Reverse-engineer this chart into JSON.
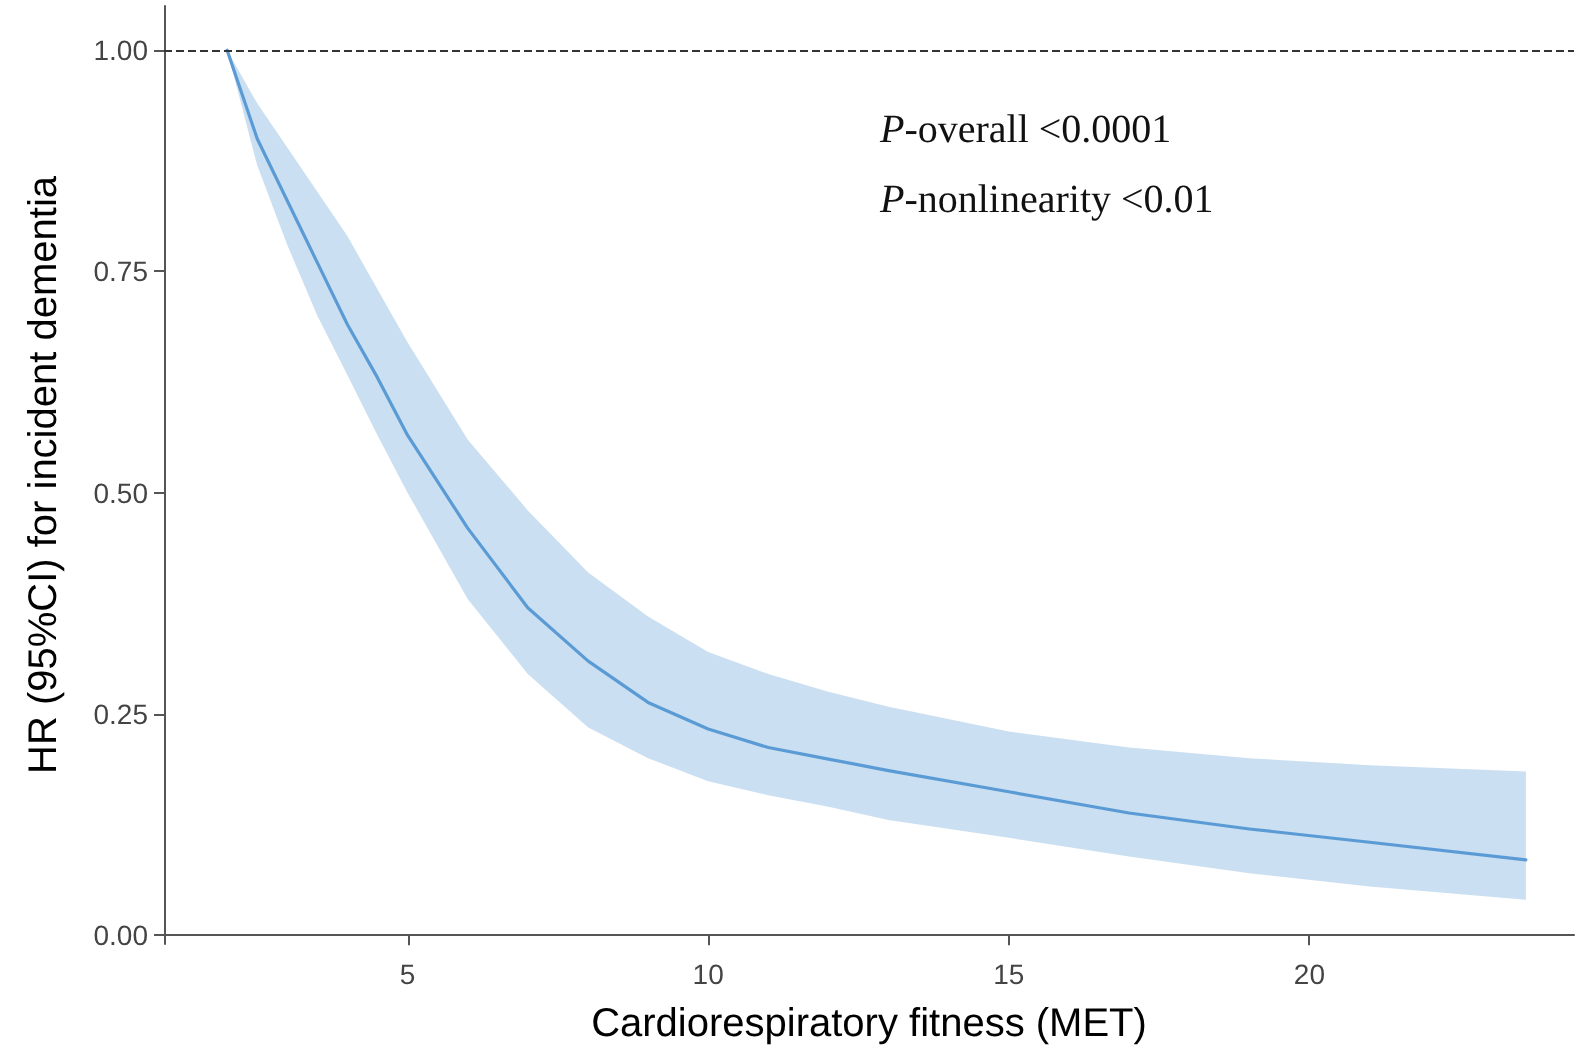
{
  "chart_data": {
    "type": "line",
    "xlabel": "Cardiorespiratory fitness (MET)",
    "ylabel": "HR (95%CI) for incident dementia",
    "x": [
      2,
      2.5,
      3,
      3.5,
      4,
      4.5,
      5,
      6,
      7,
      8,
      9,
      10,
      11,
      12,
      13,
      15,
      17,
      19,
      21,
      23.6
    ],
    "series": [
      {
        "color": "#5b9bd5",
        "values": [
          1.0,
          0.9,
          0.83,
          0.76,
          0.69,
          0.63,
          0.565,
          0.46,
          0.37,
          0.31,
          0.263,
          0.233,
          0.212,
          0.199,
          0.186,
          0.162,
          0.138,
          0.12,
          0.105,
          0.085
        ],
        "upper": [
          1.0,
          0.94,
          0.89,
          0.84,
          0.79,
          0.73,
          0.67,
          0.56,
          0.48,
          0.41,
          0.36,
          0.32,
          0.295,
          0.275,
          0.258,
          0.23,
          0.212,
          0.2,
          0.192,
          0.185
        ],
        "lower": [
          1.0,
          0.87,
          0.78,
          0.7,
          0.633,
          0.565,
          0.5,
          0.38,
          0.295,
          0.235,
          0.2,
          0.174,
          0.158,
          0.145,
          0.13,
          0.11,
          0.089,
          0.07,
          0.055,
          0.04
        ]
      }
    ],
    "xlim": [
      0.95,
      24.4
    ],
    "xticks": [
      5,
      10,
      15,
      20
    ],
    "ylim": [
      -0.01,
      1.05
    ],
    "yticks": [
      {
        "value": 0,
        "label": "0.00"
      },
      {
        "value": 0.25,
        "label": "0.25"
      },
      {
        "value": 0.5,
        "label": "0.50"
      },
      {
        "value": 0.75,
        "label": "0.75"
      },
      {
        "value": 1,
        "label": "1.00"
      }
    ],
    "ref_lines": [
      {
        "axis": "y",
        "value": 1,
        "color": "#333333",
        "line_style": "dashed"
      }
    ],
    "annotations": [
      "P-overall <0.0001",
      "P-nonlinearity <0.01"
    ],
    "grid": false,
    "marker": "none",
    "line_style": "solid"
  }
}
